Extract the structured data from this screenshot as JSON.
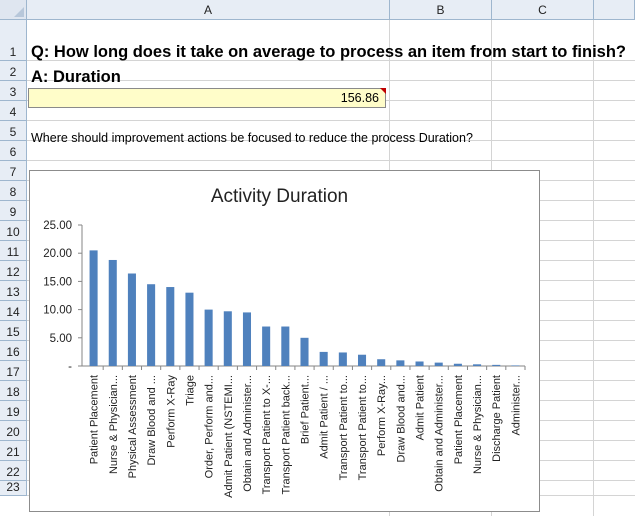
{
  "columns": [
    "A",
    "B",
    "C"
  ],
  "rows": [
    "1",
    "2",
    "3",
    "4",
    "5",
    "6",
    "7",
    "8",
    "9",
    "10",
    "11",
    "12",
    "13",
    "14",
    "15",
    "16",
    "17",
    "18",
    "19",
    "20",
    "21",
    "22",
    "23"
  ],
  "cells": {
    "a1": "Q: How long does it take on average to process an item from start to finish?",
    "a2": "A: Duration",
    "a3": "156.86",
    "a5": "Where should improvement actions be focused to reduce the process Duration?"
  },
  "colors": {
    "bar": "#4f81bd",
    "input_fill": "#fffdc9",
    "comment_flag": "#c00000",
    "header_fill": "#e7edf5"
  },
  "chart_data": {
    "type": "bar",
    "title": "Activity Duration",
    "xlabel": "",
    "ylabel": "",
    "ylim": [
      0,
      25
    ],
    "yticks": [
      "-",
      "5.00",
      "10.00",
      "15.00",
      "20.00",
      "25.00"
    ],
    "grid": false,
    "legend": "none",
    "categories": [
      "Patient Placement",
      "Nurse & Physician...",
      "Physical Assessment",
      "Draw  Blood and ...",
      "Perform X-Ray",
      "Triage",
      "Order, Perform and...",
      "Admit Patient (NSTEMI...",
      "Obtain and Administer...",
      "Transport Patient to X-...",
      "Transport Patient back...",
      "Brief Patient...",
      "Admit Patient / ...",
      "Transport Patient to...",
      "Transport Patient to...",
      "Perform X-Ray...",
      "Draw  Blood and...",
      "Admit Patient",
      "Obtain and Administer...",
      "Patient Placement",
      "Nurse & Physician...",
      "Discharge Patient",
      "Administer..."
    ],
    "values": [
      20.5,
      18.8,
      16.4,
      14.5,
      14.0,
      13.0,
      10.0,
      9.7,
      9.5,
      7.0,
      7.0,
      5.0,
      2.5,
      2.4,
      2.0,
      1.2,
      1.0,
      0.8,
      0.6,
      0.4,
      0.3,
      0.2,
      0.1
    ]
  }
}
